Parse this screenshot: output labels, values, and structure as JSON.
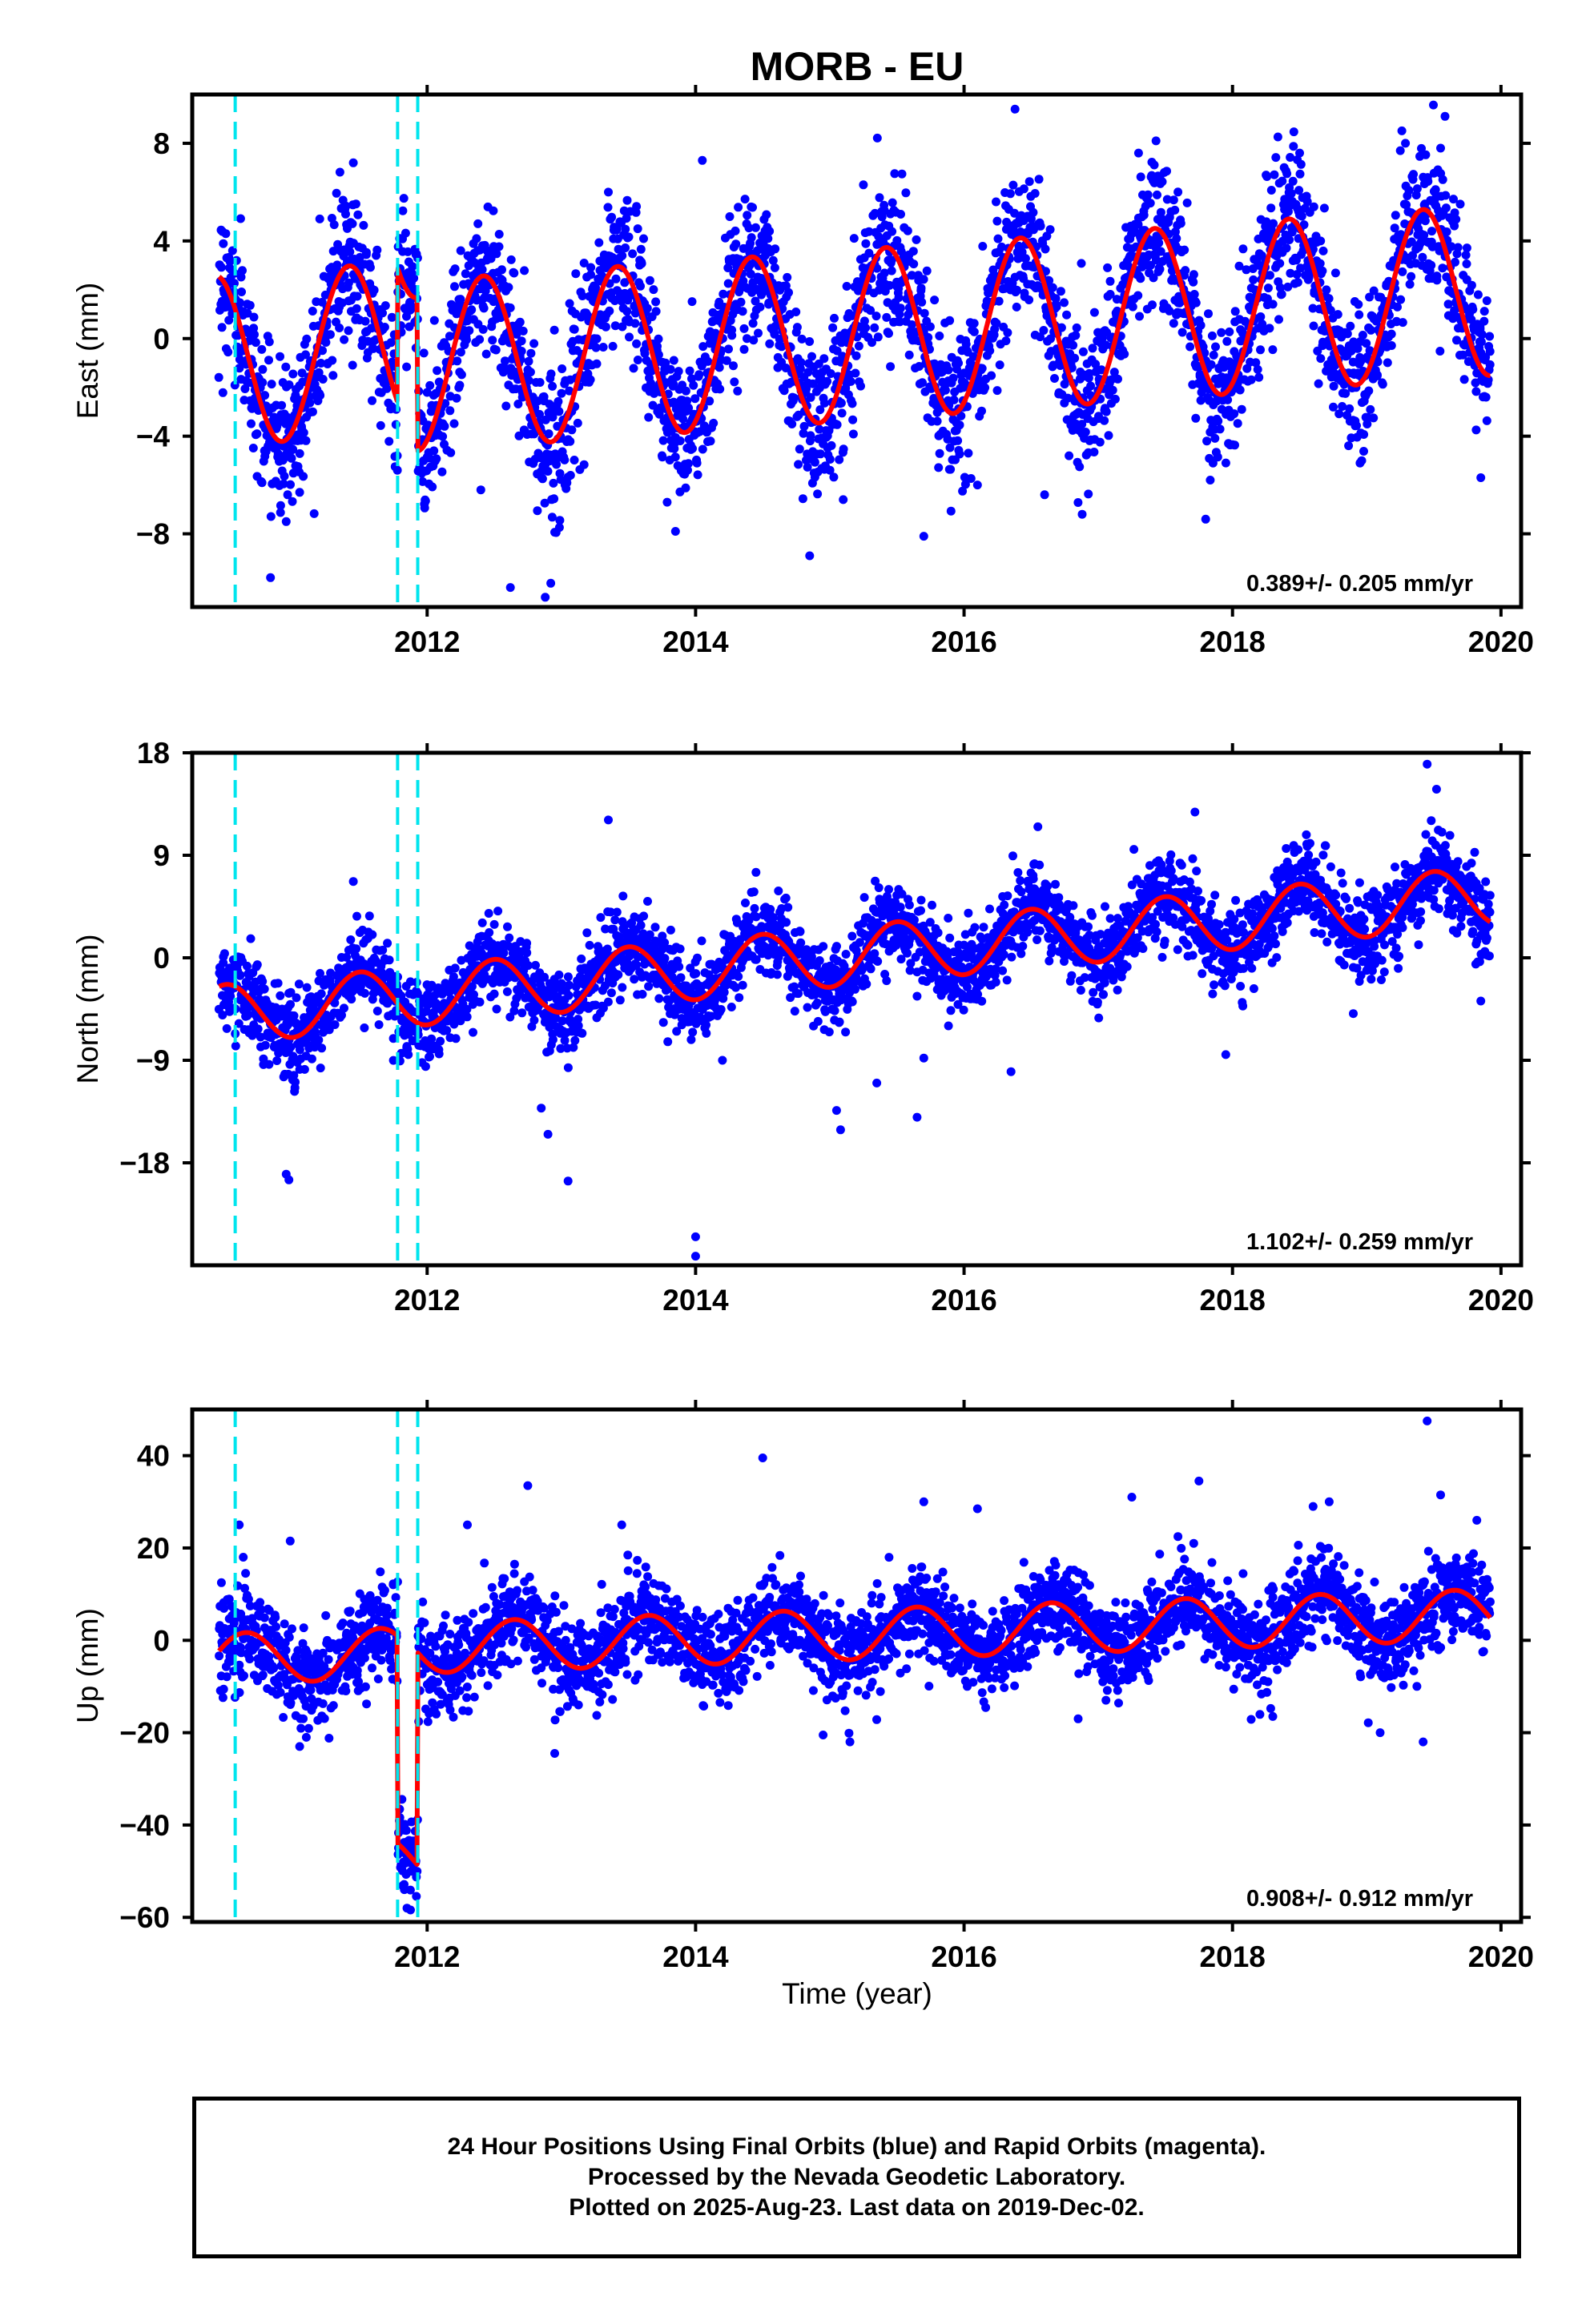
{
  "figure": {
    "title": "MORB - EU",
    "xlabel": "Time (year)"
  },
  "colors": {
    "points": "#0000ff",
    "model": "#ff0000",
    "offsets": "#00e5ee",
    "frame": "#000000"
  },
  "chart_data": [
    {
      "type": "scatter",
      "component": "east",
      "ylabel": "East (mm)",
      "ylim": [
        -11,
        10
      ],
      "yticks": [
        -8,
        -4,
        0,
        4,
        8
      ],
      "xlim": [
        2010.25,
        2020.15
      ],
      "xticks": [
        2012,
        2014,
        2016,
        2018,
        2020
      ],
      "rate_text": "0.389+/- 0.205 mm/yr",
      "offset_lines_x": [
        2010.57,
        2011.78,
        2011.93
      ],
      "model": {
        "t_start": 2010.45,
        "t_end": 2019.92,
        "base": -0.9,
        "slope": 0.389,
        "annual_amp": 3.5,
        "peak_phase": 0.42,
        "jumps": [
          {
            "t": 2011.78,
            "dy": 5.5
          },
          {
            "t": 2011.93,
            "dy": -6.3
          }
        ],
        "scatter_sd": 1.5
      },
      "points": [
        [
          2010.5,
          4.3
        ],
        [
          2010.55,
          3.6
        ],
        [
          2011.2,
          4.9
        ],
        [
          2011.45,
          7.2
        ],
        [
          2011.05,
          -6.3
        ],
        [
          2010.95,
          -7.5
        ],
        [
          2012.25,
          3.6
        ],
        [
          2012.62,
          -10.2
        ],
        [
          2012.88,
          -10.6
        ],
        [
          2012.4,
          -6.2
        ],
        [
          2013.35,
          6.0
        ],
        [
          2013.75,
          -4.8
        ],
        [
          2014.05,
          7.3
        ],
        [
          2013.85,
          -7.9
        ],
        [
          2014.55,
          4.4
        ],
        [
          2014.85,
          -8.9
        ],
        [
          2015.1,
          -6.6
        ],
        [
          2015.25,
          6.3
        ],
        [
          2015.7,
          -8.1
        ],
        [
          2016.1,
          -6.0
        ],
        [
          2016.38,
          9.4
        ],
        [
          2016.6,
          -6.4
        ],
        [
          2016.88,
          -7.2
        ],
        [
          2017.3,
          7.6
        ],
        [
          2017.43,
          8.1
        ],
        [
          2017.8,
          -7.4
        ],
        [
          2018.25,
          6.7
        ],
        [
          2018.5,
          7.6
        ],
        [
          2018.95,
          -5.1
        ],
        [
          2019.25,
          7.7
        ],
        [
          2019.55,
          7.8
        ],
        [
          2019.85,
          -5.7
        ]
      ]
    },
    {
      "type": "scatter",
      "component": "north",
      "ylabel": "North (mm)",
      "ylim": [
        -27,
        18
      ],
      "yticks": [
        -18,
        -9,
        0,
        9,
        18
      ],
      "xlim": [
        2010.25,
        2020.15
      ],
      "xticks": [
        2012,
        2014,
        2016,
        2018,
        2020
      ],
      "rate_text": "1.102+/- 0.259 mm/yr",
      "offset_lines_x": [
        2010.57,
        2011.78,
        2011.93
      ],
      "model": {
        "t_start": 2010.45,
        "t_end": 2019.92,
        "base": -5.0,
        "slope": 1.102,
        "annual_amp": 2.6,
        "peak_phase": 0.5,
        "jumps": [],
        "scatter_sd": 1.8
      },
      "points": [
        [
          2010.95,
          -19.0
        ],
        [
          2010.97,
          -19.5
        ],
        [
          2011.45,
          6.7
        ],
        [
          2012.9,
          -15.5
        ],
        [
          2013.05,
          -19.6
        ],
        [
          2012.85,
          -13.2
        ],
        [
          2013.35,
          12.1
        ],
        [
          2014.0,
          -24.5
        ],
        [
          2014.0,
          -26.2
        ],
        [
          2014.2,
          -9.0
        ],
        [
          2014.45,
          7.5
        ],
        [
          2015.05,
          -13.4
        ],
        [
          2015.08,
          -15.1
        ],
        [
          2015.35,
          -11.0
        ],
        [
          2015.65,
          -14.0
        ],
        [
          2015.7,
          -8.8
        ],
        [
          2016.55,
          11.5
        ],
        [
          2016.35,
          -10.0
        ],
        [
          2017.05,
          4.5
        ],
        [
          2017.72,
          12.8
        ],
        [
          2017.95,
          -8.5
        ],
        [
          2018.4,
          9.6
        ],
        [
          2018.55,
          10.8
        ],
        [
          2018.9,
          -4.9
        ],
        [
          2019.45,
          17.0
        ],
        [
          2019.52,
          14.8
        ],
        [
          2019.85,
          -3.8
        ]
      ]
    },
    {
      "type": "scatter",
      "component": "up",
      "ylabel": "Up (mm)",
      "ylim": [
        -61,
        50
      ],
      "yticks": [
        -60,
        -40,
        -20,
        0,
        20,
        40
      ],
      "xlim": [
        2010.25,
        2020.15
      ],
      "xticks": [
        2012,
        2014,
        2016,
        2018,
        2020
      ],
      "rate_text": "0.908+/- 0.912 mm/yr",
      "offset_lines_x": [
        2010.57,
        2011.78,
        2011.93
      ],
      "model": {
        "t_start": 2010.45,
        "t_end": 2019.92,
        "base": -4.0,
        "slope": 0.908,
        "annual_amp": 5.5,
        "peak_phase": 0.65,
        "jumps": [
          {
            "t": 2011.78,
            "dy": -45.0
          },
          {
            "t": 2011.93,
            "dy": 46.0
          }
        ],
        "scatter_sd": 5.0
      },
      "points": [
        [
          2010.6,
          25.0
        ],
        [
          2010.63,
          18.0
        ],
        [
          2010.98,
          21.5
        ],
        [
          2011.05,
          -23.0
        ],
        [
          2011.1,
          -21.0
        ],
        [
          2011.83,
          -54.0
        ],
        [
          2011.85,
          -58.0
        ],
        [
          2011.88,
          -50.0
        ],
        [
          2011.8,
          -45.0
        ],
        [
          2012.3,
          25.0
        ],
        [
          2012.75,
          33.5
        ],
        [
          2012.95,
          -24.5
        ],
        [
          2013.45,
          25.0
        ],
        [
          2014.5,
          39.5
        ],
        [
          2014.95,
          -20.5
        ],
        [
          2015.15,
          -22.0
        ],
        [
          2015.7,
          30.0
        ],
        [
          2016.1,
          28.5
        ],
        [
          2016.85,
          -17.0
        ],
        [
          2017.25,
          31.0
        ],
        [
          2017.75,
          34.5
        ],
        [
          2018.3,
          -16.5
        ],
        [
          2018.6,
          29.0
        ],
        [
          2018.72,
          30.0
        ],
        [
          2019.1,
          -20.0
        ],
        [
          2019.42,
          -22.0
        ],
        [
          2019.45,
          47.5
        ],
        [
          2019.55,
          31.5
        ],
        [
          2019.82,
          26.0
        ]
      ]
    }
  ],
  "footer": {
    "line1": "24 Hour Positions Using Final Orbits (blue) and Rapid Orbits (magenta).",
    "line2": "Processed by the Nevada Geodetic Laboratory.",
    "line3": "Plotted on 2025-Aug-23. Last data on 2019-Dec-02."
  }
}
